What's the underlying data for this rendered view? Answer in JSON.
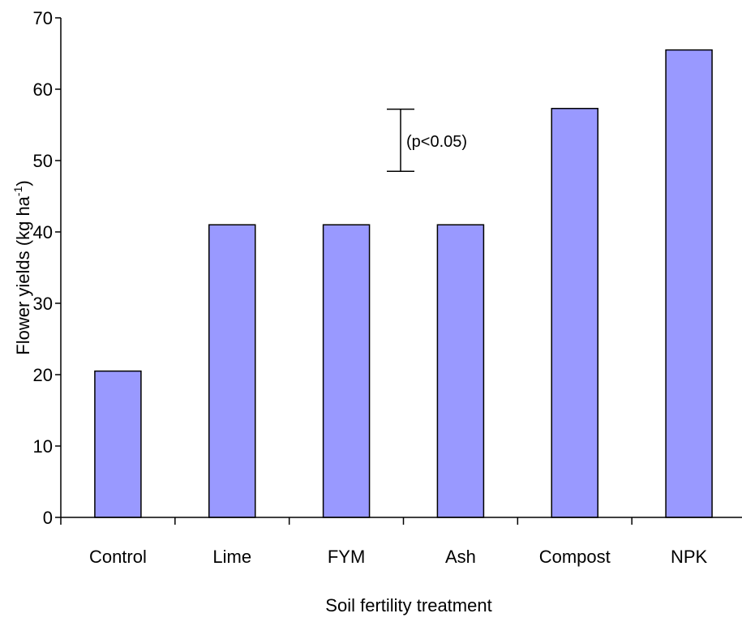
{
  "chart_data": {
    "type": "bar",
    "categories": [
      "Control",
      "Lime",
      "FYM",
      "Ash",
      "Compost",
      "NPK"
    ],
    "values": [
      20.5,
      41,
      41,
      41,
      57.3,
      65.5
    ],
    "title": "",
    "xlabel": "Soil fertility treatment",
    "ylabel": "Flower yields (kg ha-1)",
    "ylabel_main": "Flower yields (kg ha",
    "ylabel_sup": "-1",
    "ylabel_close": ")",
    "ylim": [
      0,
      70
    ],
    "yticks": [
      0,
      10,
      20,
      30,
      40,
      50,
      60,
      70
    ],
    "ytick_labels": [
      "0",
      "10",
      "20",
      "30",
      "40",
      "50",
      "60",
      "70"
    ],
    "grid": false,
    "legend": "none",
    "bar_color": "#9999ff",
    "annotation": {
      "text": "(p<0.05)",
      "type": "error-bar",
      "ymin": 48.5,
      "ymax": 57.2
    }
  }
}
